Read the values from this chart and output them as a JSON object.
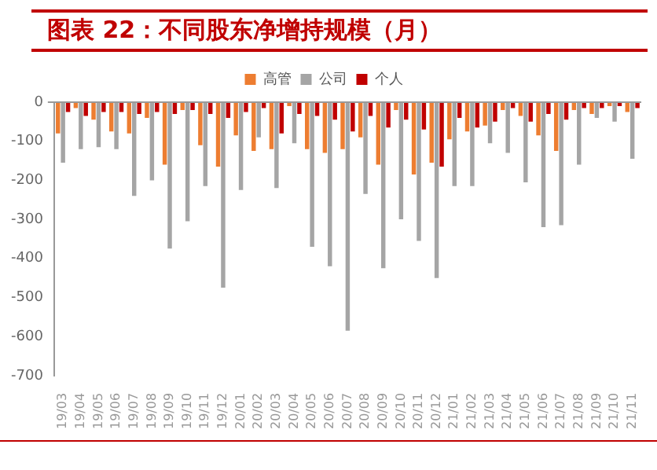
{
  "chart_data": {
    "type": "bar",
    "title": "图表 22：不同股东净增持规模（月）",
    "categories": [
      "19/03",
      "19/04",
      "19/05",
      "19/06",
      "19/07",
      "19/08",
      "19/09",
      "19/10",
      "19/11",
      "19/12",
      "20/01",
      "20/02",
      "20/03",
      "20/04",
      "20/05",
      "20/06",
      "20/07",
      "20/08",
      "20/09",
      "20/10",
      "20/11",
      "20/12",
      "21/01",
      "21/02",
      "21/03",
      "21/04",
      "21/05",
      "21/06",
      "21/07",
      "21/08",
      "21/09",
      "21/10",
      "21/11"
    ],
    "series": [
      {
        "name": "高管",
        "color": "#ed7d31",
        "values": [
          -80,
          -15,
          -45,
          -75,
          -80,
          -40,
          -160,
          -20,
          -110,
          -165,
          -85,
          -125,
          -120,
          -10,
          -120,
          -130,
          -120,
          -90,
          -160,
          -20,
          -185,
          -155,
          -95,
          -75,
          -60,
          -20,
          -35,
          -85,
          -125,
          -20,
          -30,
          -10,
          -25
        ]
      },
      {
        "name": "公司",
        "color": "#a5a5a5",
        "values": [
          -155,
          -120,
          -115,
          -120,
          -240,
          -200,
          -375,
          -305,
          -215,
          -475,
          -225,
          -90,
          -220,
          -105,
          -370,
          -420,
          -585,
          -235,
          -425,
          -300,
          -355,
          -450,
          -215,
          -215,
          -105,
          -130,
          -205,
          -320,
          -315,
          -160,
          -40,
          -50,
          -145
        ]
      },
      {
        "name": "个人",
        "color": "#c00000",
        "values": [
          -25,
          -35,
          -25,
          -25,
          -30,
          -25,
          -30,
          -20,
          -30,
          -40,
          -25,
          -15,
          -80,
          -30,
          -35,
          -45,
          -75,
          -35,
          -65,
          -45,
          -70,
          -165,
          -40,
          -65,
          -50,
          -15,
          -50,
          -30,
          -45,
          -15,
          -15,
          -10,
          -15
        ]
      }
    ],
    "ylim": [
      -700,
      0
    ],
    "yticks": [
      -700,
      -600,
      -500,
      -400,
      -300,
      -200,
      -100,
      0
    ],
    "legend": "top"
  }
}
